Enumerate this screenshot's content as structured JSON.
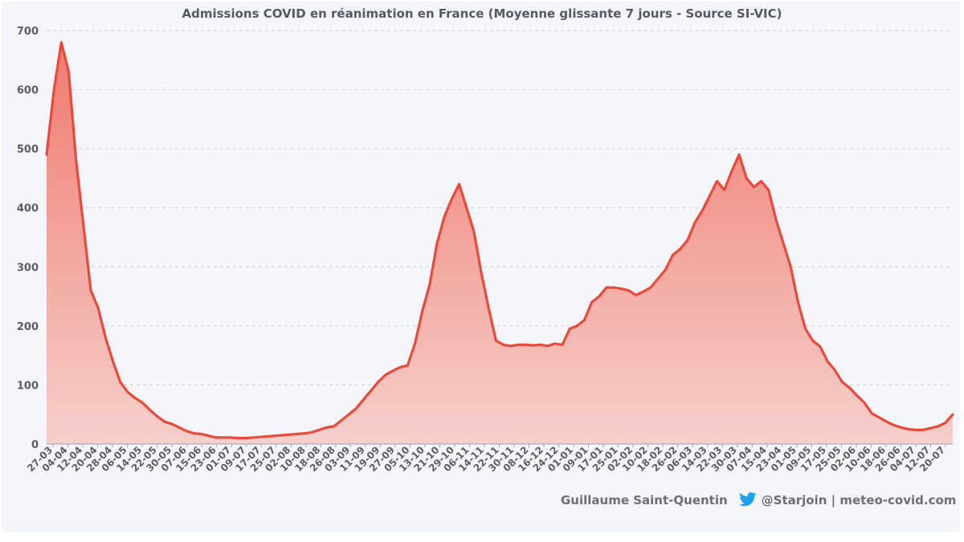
{
  "title": "Admissions COVID en réanimation en France (Moyenne glissante 7 jours - Source SI-VIC)",
  "credit": {
    "author": "Guillaume Saint-Quentin",
    "handle": "@Starjoin | meteo-covid.com",
    "icon": "twitter-bird-icon"
  },
  "colors": {
    "line": "#e84a3c",
    "fill_top": "#f07a6e",
    "fill_bottom": "#f6cfcc",
    "grid": "#c9d0dc",
    "background": "#f4f6fb"
  },
  "chart_data": {
    "type": "area",
    "title": "Admissions COVID en réanimation en France (Moyenne glissante 7 jours - Source SI-VIC)",
    "xlabel": "",
    "ylabel": "",
    "ylim": [
      0,
      700
    ],
    "yticks": [
      0,
      100,
      200,
      300,
      400,
      500,
      600,
      700
    ],
    "grid": true,
    "legend": "none",
    "x_tick_labels": [
      "27-03",
      "04-04",
      "12-04",
      "20-04",
      "28-04",
      "06-05",
      "14-05",
      "22-05",
      "30-05",
      "07-06",
      "15-06",
      "23-06",
      "01-07",
      "09-07",
      "17-07",
      "25-07",
      "02-08",
      "10-08",
      "18-08",
      "26-08",
      "03-09",
      "11-09",
      "19-09",
      "27-09",
      "05-10",
      "13-10",
      "21-10",
      "29-10",
      "06-11",
      "14-11",
      "22-11",
      "30-11",
      "08-12",
      "16-12",
      "24-12",
      "01-01",
      "09-01",
      "17-01",
      "25-01",
      "02-02",
      "10-02",
      "18-02",
      "26-02",
      "06-03",
      "14-03",
      "22-03",
      "30-03",
      "07-04",
      "15-04",
      "23-04",
      "01-05",
      "09-05",
      "17-05",
      "25-05",
      "02-06",
      "10-06",
      "18-06",
      "26-06",
      "04-07",
      "12-07",
      "20-07"
    ],
    "series": [
      {
        "values": [
          490,
          600,
          680,
          630,
          480,
          370,
          260,
          230,
          180,
          140,
          105,
          88,
          78,
          70,
          58,
          47,
          38,
          34,
          28,
          22,
          18,
          17,
          14,
          11,
          11,
          11,
          10,
          10,
          11,
          12,
          13,
          14,
          15,
          16,
          17,
          18,
          20,
          24,
          28,
          30,
          40,
          50,
          60,
          75,
          90,
          105,
          117,
          124,
          130,
          133,
          170,
          225,
          270,
          340,
          385,
          415,
          440,
          400,
          360,
          290,
          230,
          175,
          168,
          166,
          168,
          168,
          167,
          168,
          166,
          170,
          168,
          195,
          200,
          210,
          240,
          250,
          265,
          265,
          263,
          260,
          252,
          258,
          265,
          280,
          295,
          320,
          330,
          345,
          375,
          395,
          420,
          445,
          430,
          462,
          490,
          450,
          435,
          445,
          430,
          380,
          340,
          300,
          240,
          195,
          175,
          165,
          140,
          125,
          105,
          95,
          82,
          70,
          52,
          45,
          38,
          32,
          28,
          25,
          24,
          24,
          27,
          30,
          36,
          50
        ]
      }
    ]
  }
}
